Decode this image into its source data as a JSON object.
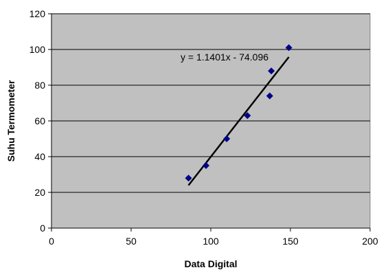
{
  "chart_data": {
    "type": "scatter",
    "title": "",
    "xlabel": "Data Digital",
    "ylabel": "Suhu Termometer",
    "xlim": [
      0,
      200
    ],
    "ylim": [
      0,
      120
    ],
    "xticks": [
      0,
      50,
      100,
      150,
      200
    ],
    "yticks": [
      0,
      20,
      40,
      60,
      80,
      100,
      120
    ],
    "grid": "horizontal",
    "legend": "none",
    "plot_background": "#c0c0c0",
    "marker_color": "#00008b",
    "series": [
      {
        "points": [
          {
            "x": 86,
            "y": 28
          },
          {
            "x": 97,
            "y": 35
          },
          {
            "x": 110,
            "y": 50
          },
          {
            "x": 123,
            "y": 63
          },
          {
            "x": 137,
            "y": 74
          },
          {
            "x": 138,
            "y": 88
          },
          {
            "x": 149,
            "y": 101
          }
        ]
      }
    ],
    "trendline": {
      "type": "linear",
      "slope": 1.1401,
      "intercept": -74.096,
      "x_range": [
        86,
        149
      ],
      "equation_label": "y = 1.1401x - 74.096",
      "color": "#000000"
    }
  }
}
